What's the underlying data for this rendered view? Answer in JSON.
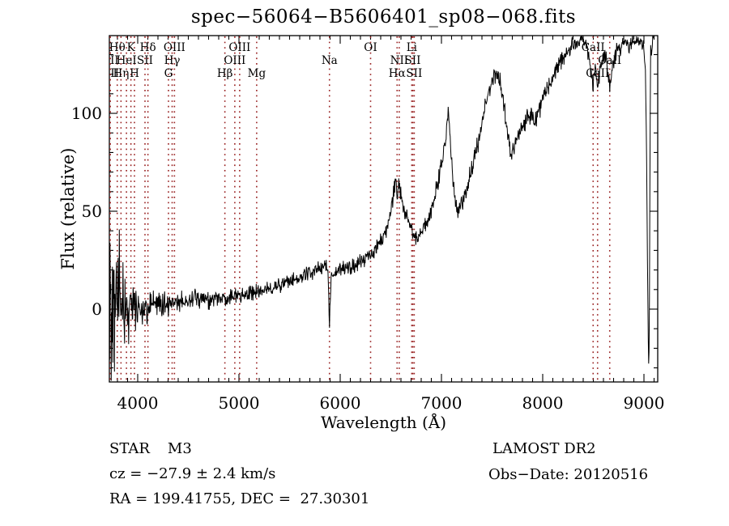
{
  "title": "spec−56064−B5606401_sp08−068.fits",
  "axes": {
    "xlabel": "Wavelength (Å)",
    "ylabel": "Flux (relative)",
    "x_tick_labels": [
      "4000",
      "5000",
      "6000",
      "7000",
      "8000",
      "9000"
    ],
    "y_tick_labels": [
      "0",
      "50",
      "100"
    ]
  },
  "annotations": {
    "target_class": "STAR",
    "subclass": "M3",
    "cz": "cz = −27.9 ± 2.4 km/s",
    "radec": "RA = 199.41755, DEC =  27.30301",
    "survey": "LAMOST DR2",
    "obs_date": "Obs−Date: 20120516"
  },
  "chart_data": {
    "type": "line",
    "title": "spec−56064−B5606401_sp08−068.fits",
    "xlabel": "Wavelength (Å)",
    "ylabel": "Flux (relative)",
    "xlim": [
      3720,
      9136
    ],
    "ylim": [
      -37.2,
      139.7
    ],
    "x_major_ticks": [
      4000,
      5000,
      6000,
      7000,
      8000,
      9000
    ],
    "x_minor_step": 100,
    "y_major_ticks": [
      0,
      50,
      100
    ],
    "y_minor_step": 10,
    "grid": false,
    "spectrum_color": "#000000",
    "line_marker_color": "#992222",
    "series": [
      {
        "name": "flux",
        "seed": 42,
        "sample_step_angstrom": 4,
        "envelope": [
          [
            3690,
            12
          ],
          [
            3700,
            10
          ],
          [
            3720,
            8
          ],
          [
            3750,
            5
          ],
          [
            3800,
            3
          ],
          [
            3850,
            2
          ],
          [
            3900,
            1
          ],
          [
            3950,
            0
          ],
          [
            4000,
            1
          ],
          [
            4050,
            1
          ],
          [
            4100,
            0
          ],
          [
            4150,
            1
          ],
          [
            4200,
            2
          ],
          [
            4300,
            3
          ],
          [
            4400,
            4
          ],
          [
            4500,
            4
          ],
          [
            4600,
            5
          ],
          [
            4700,
            5
          ],
          [
            4800,
            5
          ],
          [
            4900,
            6
          ],
          [
            5000,
            7
          ],
          [
            5100,
            8
          ],
          [
            5200,
            9
          ],
          [
            5300,
            10
          ],
          [
            5400,
            12
          ],
          [
            5500,
            14
          ],
          [
            5600,
            16
          ],
          [
            5700,
            18
          ],
          [
            5800,
            21
          ],
          [
            5860,
            23
          ],
          [
            5880,
            20
          ],
          [
            5894,
            -8
          ],
          [
            5910,
            16
          ],
          [
            5940,
            19
          ],
          [
            6000,
            20
          ],
          [
            6100,
            22
          ],
          [
            6200,
            24
          ],
          [
            6280,
            27
          ],
          [
            6310,
            28
          ],
          [
            6350,
            31
          ],
          [
            6400,
            35
          ],
          [
            6450,
            40
          ],
          [
            6500,
            50
          ],
          [
            6530,
            60
          ],
          [
            6550,
            68
          ],
          [
            6563,
            54
          ],
          [
            6576,
            63
          ],
          [
            6600,
            58
          ],
          [
            6640,
            50
          ],
          [
            6690,
            43
          ],
          [
            6730,
            36
          ],
          [
            6770,
            38
          ],
          [
            6820,
            41
          ],
          [
            6870,
            45
          ],
          [
            6920,
            54
          ],
          [
            6970,
            66
          ],
          [
            7010,
            76
          ],
          [
            7050,
            92
          ],
          [
            7070,
            100
          ],
          [
            7090,
            85
          ],
          [
            7120,
            62
          ],
          [
            7160,
            50
          ],
          [
            7200,
            53
          ],
          [
            7250,
            62
          ],
          [
            7300,
            72
          ],
          [
            7350,
            82
          ],
          [
            7400,
            95
          ],
          [
            7450,
            108
          ],
          [
            7500,
            116
          ],
          [
            7540,
            120
          ],
          [
            7580,
            118
          ],
          [
            7610,
            108
          ],
          [
            7650,
            90
          ],
          [
            7690,
            79
          ],
          [
            7730,
            84
          ],
          [
            7780,
            90
          ],
          [
            7840,
            97
          ],
          [
            7890,
            100
          ],
          [
            7930,
            96
          ],
          [
            7970,
            102
          ],
          [
            8000,
            108
          ],
          [
            8050,
            114
          ],
          [
            8100,
            119
          ],
          [
            8150,
            124
          ],
          [
            8200,
            129
          ],
          [
            8250,
            132
          ],
          [
            8300,
            135
          ],
          [
            8350,
            136
          ],
          [
            8400,
            138
          ],
          [
            8440,
            133
          ],
          [
            8470,
            124
          ],
          [
            8498,
            114
          ],
          [
            8520,
            126
          ],
          [
            8542,
            113
          ],
          [
            8570,
            125
          ],
          [
            8610,
            130
          ],
          [
            8640,
            124
          ],
          [
            8662,
            112
          ],
          [
            8690,
            126
          ],
          [
            8730,
            132
          ],
          [
            8770,
            134
          ],
          [
            8810,
            136
          ],
          [
            8850,
            134
          ],
          [
            8890,
            136
          ],
          [
            8930,
            138
          ],
          [
            8970,
            136
          ],
          [
            9000,
            134
          ],
          [
            9015,
            120
          ],
          [
            9025,
            80
          ],
          [
            9035,
            20
          ],
          [
            9045,
            -30
          ],
          [
            9052,
            -20
          ],
          [
            9058,
            60
          ],
          [
            9065,
            135
          ],
          [
            9075,
            130
          ],
          [
            9085,
            138
          ],
          [
            9100,
            140
          ]
        ],
        "noise_amplitude": [
          [
            3690,
            46
          ],
          [
            3720,
            44
          ],
          [
            3760,
            38
          ],
          [
            3800,
            30
          ],
          [
            3850,
            25
          ],
          [
            3900,
            18
          ],
          [
            3950,
            13
          ],
          [
            4000,
            10
          ],
          [
            4100,
            8
          ],
          [
            4250,
            7
          ],
          [
            4500,
            5.5
          ],
          [
            4800,
            4.5
          ],
          [
            5200,
            4
          ],
          [
            5600,
            4
          ],
          [
            6000,
            4
          ],
          [
            6400,
            4.5
          ],
          [
            6800,
            4.5
          ],
          [
            7200,
            5
          ],
          [
            7600,
            5
          ],
          [
            8000,
            5
          ],
          [
            8400,
            4.5
          ],
          [
            8800,
            4.5
          ],
          [
            9000,
            3
          ],
          [
            9040,
            2
          ],
          [
            9100,
            2
          ]
        ]
      }
    ],
    "spectral_lines": [
      {
        "label": "OII",
        "wavelength": 3727,
        "row": 2
      },
      {
        "label": "OII",
        "wavelength": 3729,
        "row": 3
      },
      {
        "label": "Hθ",
        "wavelength": 3798,
        "row": 1
      },
      {
        "label": "Hη",
        "wavelength": 3835,
        "row": 3
      },
      {
        "label": "HeI",
        "wavelength": 3889,
        "row": 2
      },
      {
        "label": "K",
        "wavelength": 3933,
        "row": 1
      },
      {
        "label": "H",
        "wavelength": 3968,
        "row": 3
      },
      {
        "label": "SII",
        "wavelength": 4072,
        "row": 2
      },
      {
        "label": "Hδ",
        "wavelength": 4101,
        "row": 1
      },
      {
        "label": "G",
        "wavelength": 4304,
        "row": 3
      },
      {
        "label": "Hγ",
        "wavelength": 4340,
        "row": 2
      },
      {
        "label": "OIII",
        "wavelength": 4363,
        "row": 1
      },
      {
        "label": "Hβ",
        "wavelength": 4861,
        "row": 3
      },
      {
        "label": "OIII",
        "wavelength": 4959,
        "row": 2
      },
      {
        "label": "OIII",
        "wavelength": 5007,
        "row": 1
      },
      {
        "label": "Mg",
        "wavelength": 5175,
        "row": 3
      },
      {
        "label": "Na",
        "wavelength": 5894,
        "row": 2
      },
      {
        "label": "OI",
        "wavelength": 6300,
        "row": 1
      },
      {
        "label": "Hα",
        "wavelength": 6562,
        "row": 3
      },
      {
        "label": "NII",
        "wavelength": 6583,
        "row": 2
      },
      {
        "label": "Li",
        "wavelength": 6707,
        "row": 1
      },
      {
        "label": "SII",
        "wavelength": 6716,
        "row": 2
      },
      {
        "label": "SII",
        "wavelength": 6731,
        "row": 3
      },
      {
        "label": "CaII",
        "wavelength": 8498,
        "row": 1
      },
      {
        "label": "CaII",
        "wavelength": 8542,
        "row": 3
      },
      {
        "label": "CaII",
        "wavelength": 8662,
        "row": 2
      }
    ]
  }
}
